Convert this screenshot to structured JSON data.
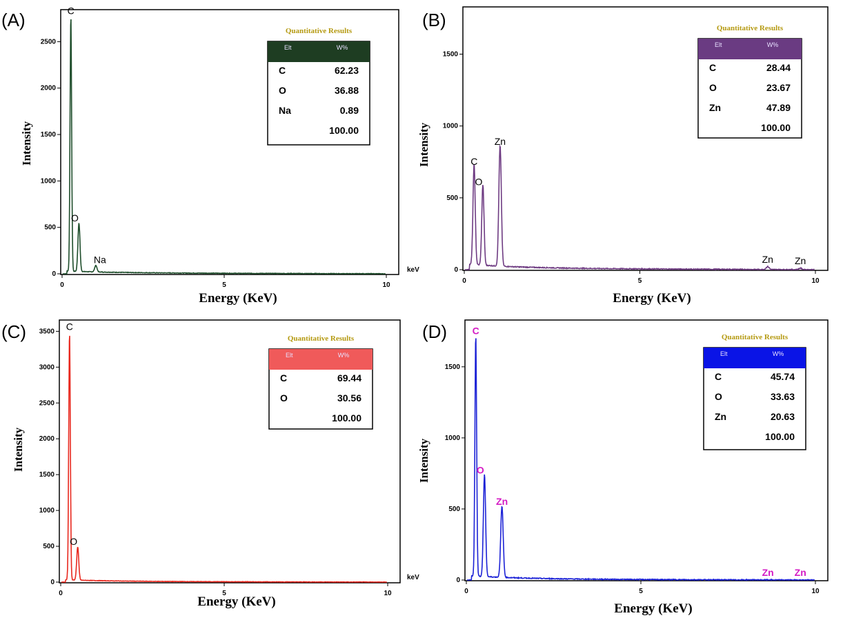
{
  "chart_data": [
    {
      "type": "line",
      "panel_label": "(A)",
      "title": "",
      "xlabel": "Energy (KeV)",
      "ylabel": "Intensity",
      "x_unit_label": "keV",
      "xlim": [
        0,
        10
      ],
      "ylim": [
        0,
        2800
      ],
      "xticks": [
        0,
        5,
        10
      ],
      "yticks": [
        0,
        500,
        1000,
        1500,
        2000,
        2500
      ],
      "color": "#1e4d2b",
      "label_color": "#000000",
      "peaks": [
        {
          "element": "C",
          "x": 0.27,
          "y": 2750,
          "width": 0.035
        },
        {
          "element": "O",
          "x": 0.52,
          "y": 520,
          "width": 0.045
        },
        {
          "element": "Na",
          "x": 1.04,
          "y": 70,
          "width": 0.05
        }
      ],
      "baseline_tail": [
        20,
        10
      ],
      "table": {
        "title": "Quantitative Results",
        "header": [
          "Elt",
          "W%"
        ],
        "header_color": "#1e3d22",
        "rows": [
          [
            "C",
            "62.23"
          ],
          [
            "O",
            "36.88"
          ],
          [
            "Na",
            "0.89"
          ],
          [
            "",
            "100.00"
          ]
        ]
      }
    },
    {
      "type": "line",
      "panel_label": "(B)",
      "title": "",
      "xlabel": "Energy (KeV)",
      "ylabel": "Intensity",
      "x_unit_label": "",
      "xlim": [
        0,
        10
      ],
      "ylim": [
        0,
        1800
      ],
      "xticks": [
        0,
        5,
        10
      ],
      "yticks": [
        0,
        500,
        1000,
        1500
      ],
      "color": "#6e3b82",
      "label_color": "#000000",
      "peaks": [
        {
          "element": "C",
          "x": 0.28,
          "y": 700,
          "width": 0.045
        },
        {
          "element": "O",
          "x": 0.53,
          "y": 560,
          "width": 0.045
        },
        {
          "element": "Zn",
          "x": 1.02,
          "y": 840,
          "width": 0.05
        },
        {
          "element": "Zn",
          "x": 8.64,
          "y": 20,
          "width": 0.06
        },
        {
          "element": "Zn",
          "x": 9.57,
          "y": 10,
          "width": 0.06
        }
      ],
      "baseline_tail": [
        30,
        8
      ],
      "table": {
        "title": "Quantitative Results",
        "header": [
          "Elt",
          "W%"
        ],
        "header_color": "#6a3b82",
        "rows": [
          [
            "C",
            "28.44"
          ],
          [
            "O",
            "23.67"
          ],
          [
            "Zn",
            "47.89"
          ],
          [
            "",
            "100.00"
          ]
        ]
      }
    },
    {
      "type": "line",
      "panel_label": "(C)",
      "title": "",
      "xlabel": "Energy (KeV)",
      "ylabel": "Intensity",
      "x_unit_label": "keV",
      "xlim": [
        0,
        10
      ],
      "ylim": [
        0,
        3600
      ],
      "xticks": [
        0,
        5,
        10
      ],
      "yticks": [
        0,
        500,
        1000,
        1500,
        2000,
        2500,
        3000,
        3500
      ],
      "color": "#e8281e",
      "label_color": "#000000",
      "peaks": [
        {
          "element": "C",
          "x": 0.27,
          "y": 3460,
          "width": 0.035
        },
        {
          "element": "O",
          "x": 0.52,
          "y": 460,
          "width": 0.045
        }
      ],
      "baseline_tail": [
        25,
        8
      ],
      "table": {
        "title": "Quantitative Results",
        "header": [
          "Elt",
          "W%"
        ],
        "header_color": "#f05a5a",
        "rows": [
          [
            "C",
            "69.44"
          ],
          [
            "O",
            "30.56"
          ],
          [
            "",
            "100.00"
          ]
        ]
      }
    },
    {
      "type": "line",
      "panel_label": "(D)",
      "title": "",
      "xlabel": "Energy (KeV)",
      "ylabel": "Intensity",
      "x_unit_label": "",
      "xlim": [
        0,
        10
      ],
      "ylim": [
        0,
        1800
      ],
      "xticks": [
        0,
        5,
        10
      ],
      "yticks": [
        0,
        500,
        1000,
        1500
      ],
      "color": "#1c22d6",
      "label_color": "#d41bc4",
      "peaks": [
        {
          "element": "C",
          "x": 0.27,
          "y": 1700,
          "width": 0.035
        },
        {
          "element": "O",
          "x": 0.52,
          "y": 720,
          "width": 0.045
        },
        {
          "element": "Zn",
          "x": 1.02,
          "y": 500,
          "width": 0.05
        },
        {
          "element": "Zn",
          "x": 8.64,
          "y": 0,
          "width": 0.06
        },
        {
          "element": "Zn",
          "x": 9.57,
          "y": 0,
          "width": 0.06
        }
      ],
      "baseline_tail": [
        25,
        5
      ],
      "table": {
        "title": "Quantitative Results",
        "header": [
          "Elt",
          "W%"
        ],
        "header_color": "#0a14e6",
        "rows": [
          [
            "C",
            "45.74"
          ],
          [
            "O",
            "33.63"
          ],
          [
            "Zn",
            "20.63"
          ],
          [
            "",
            "100.00"
          ]
        ]
      }
    }
  ]
}
